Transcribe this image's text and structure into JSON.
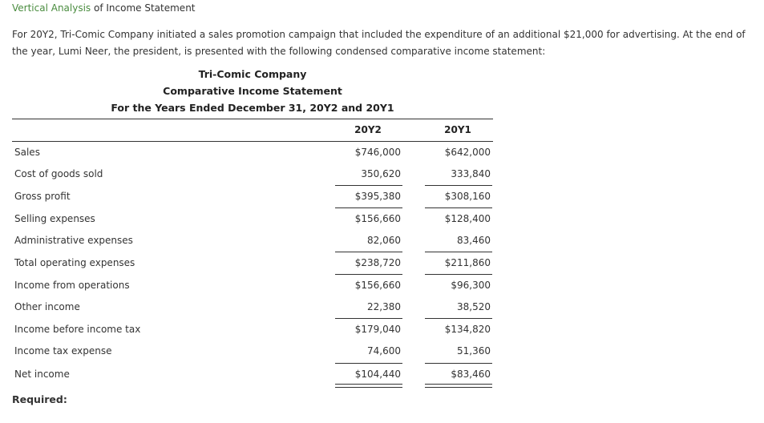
{
  "heading": {
    "link_text": "Vertical Analysis",
    "rest": " of Income Statement"
  },
  "intro": "For 20Y2, Tri-Comic Company initiated a sales promotion campaign that included the expenditure of an additional $21,000 for advertising. At the end of the year, Lumi Neer, the president, is presented with the following condensed comparative income statement:",
  "statement": {
    "company": "Tri-Comic Company",
    "title": "Comparative Income Statement",
    "period": "For the Years Ended December 31, 20Y2 and 20Y1",
    "columns": [
      "20Y2",
      "20Y1"
    ],
    "rows": [
      {
        "label": "Sales",
        "y2": "$746,000",
        "y1": "$642,000"
      },
      {
        "label": "Cost of goods sold",
        "y2": "350,620",
        "y1": "333,840"
      },
      {
        "label": "Gross profit",
        "y2": "$395,380",
        "y1": "$308,160"
      },
      {
        "label": "Selling expenses",
        "y2": "$156,660",
        "y1": "$128,400"
      },
      {
        "label": "Administrative expenses",
        "y2": "82,060",
        "y1": "83,460"
      },
      {
        "label": "Total operating expenses",
        "y2": "$238,720",
        "y1": "$211,860"
      },
      {
        "label": "Income from operations",
        "y2": "$156,660",
        "y1": "$96,300"
      },
      {
        "label": "Other income",
        "y2": "22,380",
        "y1": "38,520"
      },
      {
        "label": "Income before income tax",
        "y2": "$179,040",
        "y1": "$134,820"
      },
      {
        "label": "Income tax expense",
        "y2": "74,600",
        "y1": "51,360"
      },
      {
        "label": "Net income",
        "y2": "$104,440",
        "y1": "$83,460"
      }
    ]
  },
  "required_label": "Required:"
}
